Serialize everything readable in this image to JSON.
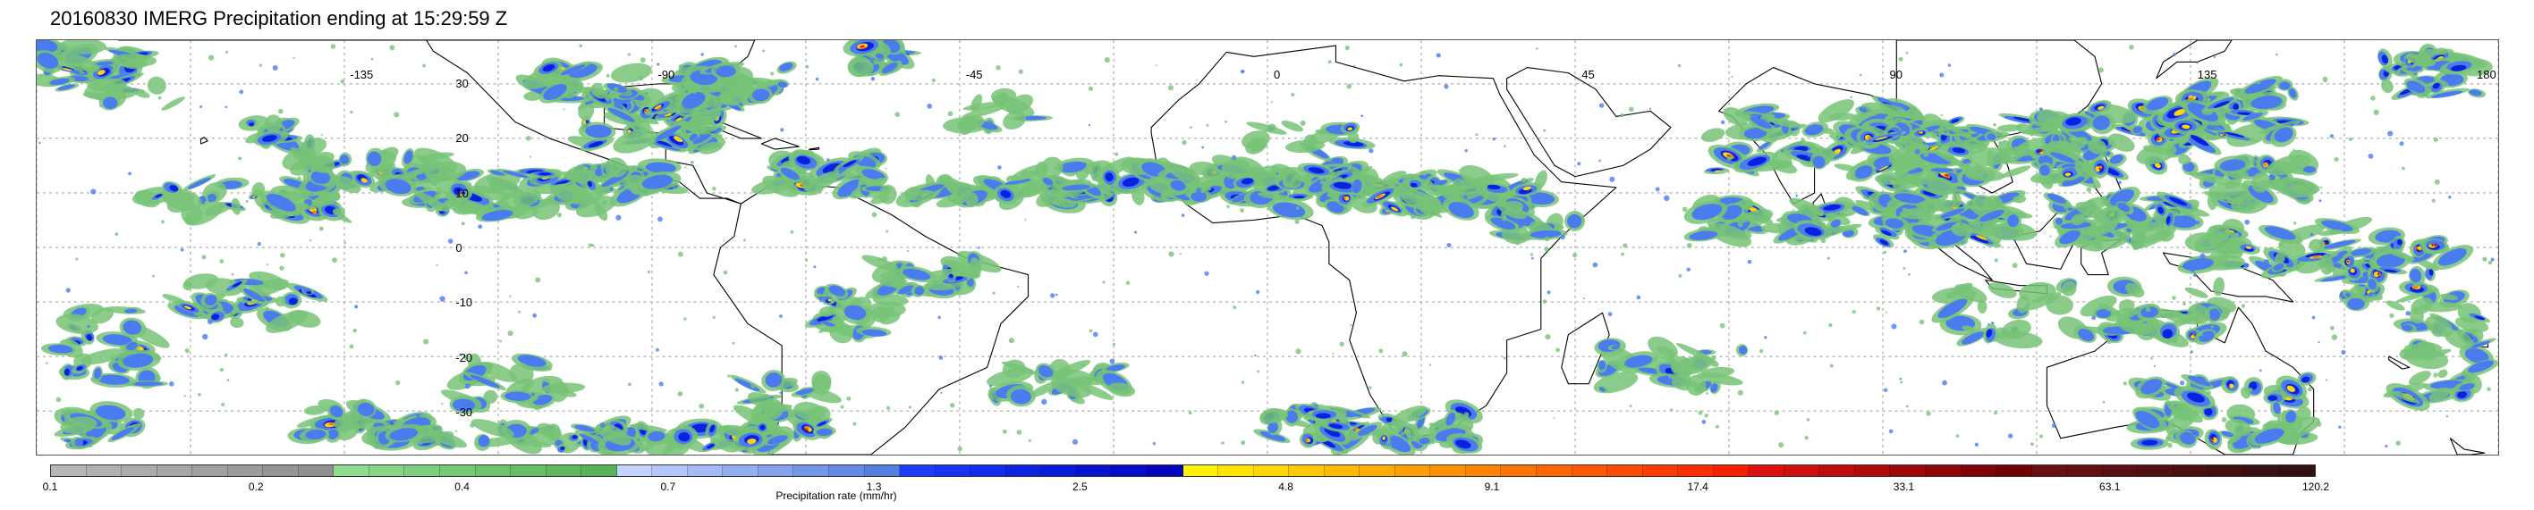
{
  "title": "20160830 IMERG Precipitation ending at 15:29:59 Z",
  "map": {
    "lon_labels": [
      "-135",
      "-90",
      "-45",
      "0",
      "45",
      "90",
      "135",
      "180"
    ],
    "lat_labels": [
      "30",
      "20",
      "10",
      "0",
      "-10",
      "-20",
      "-30"
    ],
    "gridlines": true,
    "coastline_color": "#000000"
  },
  "colorbar": {
    "label": "Precipitation rate (mm/hr)",
    "ticks": [
      "0.1",
      "0.2",
      "0.4",
      "0.7",
      "1.3",
      "2.5",
      "4.8",
      "9.1",
      "17.4",
      "33.1",
      "63.1",
      "120.2"
    ],
    "colors": [
      "#b7b7b7",
      "#b1b1b1",
      "#ababab",
      "#a6a6a6",
      "#a0a0a0",
      "#9b9b9b",
      "#959595",
      "#909090",
      "#8fdc8f",
      "#86d686",
      "#7ed07e",
      "#76ca76",
      "#6ec46e",
      "#66be66",
      "#5fb85f",
      "#58b258",
      "#c4d2ff",
      "#b4c6fb",
      "#a4baf6",
      "#94aef2",
      "#84a2ee",
      "#7496ea",
      "#648ae6",
      "#547ee2",
      "#1a3cff",
      "#1634f6",
      "#122ced",
      "#0e24e4",
      "#0a1cdb",
      "#0614d2",
      "#040cc9",
      "#0204c0",
      "#fff200",
      "#ffe400",
      "#ffd600",
      "#ffc800",
      "#ffba00",
      "#ffac00",
      "#ff9e00",
      "#ff9000",
      "#ff8200",
      "#ff7400",
      "#ff6600",
      "#ff5800",
      "#ff4a00",
      "#ff3c00",
      "#ff2e00",
      "#f82000",
      "#e01010",
      "#d00e0e",
      "#c00c0c",
      "#b00a0a",
      "#a00808",
      "#900606",
      "#800404",
      "#700202",
      "#6a1010",
      "#621010",
      "#5a1010",
      "#521010",
      "#4a1010",
      "#421010",
      "#3a1010",
      "#321010"
    ]
  },
  "precip_colors": [
    "#77c377",
    "#4a7cf0",
    "#0a22e0",
    "#ffd400",
    "#ff7a00",
    "#e01010",
    "#7a0a0a"
  ]
}
